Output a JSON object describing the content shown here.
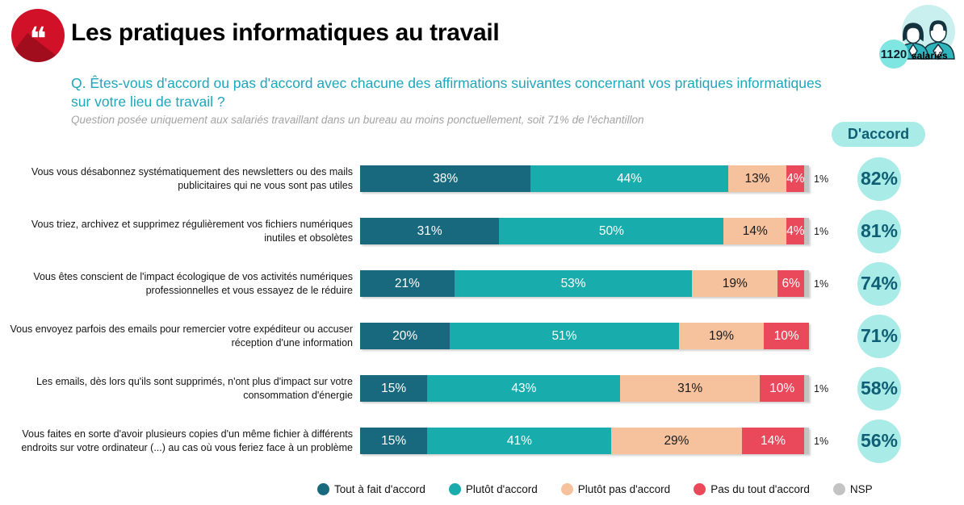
{
  "header": {
    "title": "Les pratiques informatiques au travail",
    "quote_glyph": "❝",
    "sample_badge": {
      "count": "1120",
      "label": "salariés"
    }
  },
  "question": {
    "text": "Q. Êtes-vous d'accord ou pas d'accord avec chacune des affirmations suivantes concernant vos pratiques informatiques sur votre lieu de travail ?",
    "note": "Question posée uniquement aux salariés travaillant dans un bureau au moins ponctuellement, soit 71% de l'échantillon"
  },
  "agree_header": "D'accord",
  "chart_data": {
    "type": "bar",
    "stacked": true,
    "orientation": "horizontal",
    "unit": "%",
    "xlim": [
      0,
      100
    ],
    "grid": false,
    "legend_position": "bottom",
    "series": [
      {
        "name": "Tout à fait d'accord",
        "color": "#18697D",
        "text_color": "#FFFFFF"
      },
      {
        "name": "Plutôt d'accord",
        "color": "#19ACAD",
        "text_color": "#FFFFFF"
      },
      {
        "name": "Plutôt pas d'accord",
        "color": "#F6C29E",
        "text_color": "#1A1A1A"
      },
      {
        "name": "Pas du tout d'accord",
        "color": "#E9495B",
        "text_color": "#FFFFFF"
      },
      {
        "name": "NSP",
        "color": "#C3C3C3",
        "text_color": "#1A1A1A"
      }
    ],
    "rows": [
      {
        "label": "Vous vous désabonnez systématiquement des newsletters ou des mails publicitaires qui ne vous sont pas utiles",
        "values": [
          38,
          44,
          13,
          4,
          1
        ],
        "agree": "82%"
      },
      {
        "label": "Vous triez, archivez et supprimez régulièrement vos fichiers numériques inutiles et obsolètes",
        "values": [
          31,
          50,
          14,
          4,
          1
        ],
        "agree": "81%"
      },
      {
        "label": "Vous êtes conscient de l'impact écologique de vos activités numériques professionnelles et vous essayez de le réduire",
        "values": [
          21,
          53,
          19,
          6,
          1
        ],
        "agree": "74%"
      },
      {
        "label": "Vous envoyez parfois des emails pour remercier votre expéditeur ou accuser réception d'une information",
        "values": [
          20,
          51,
          19,
          10,
          0
        ],
        "agree": "71%"
      },
      {
        "label": "Les emails, dès lors qu'ils sont supprimés, n'ont plus d'impact sur votre consommation d'énergie",
        "values": [
          15,
          43,
          31,
          10,
          1
        ],
        "agree": "58%"
      },
      {
        "label": "Vous faites en sorte d'avoir plusieurs copies d'un même fichier à différents endroits sur votre ordinateur (...) au cas où vous feriez face à un problème",
        "values": [
          15,
          41,
          29,
          14,
          1
        ],
        "agree": "56%"
      }
    ]
  }
}
